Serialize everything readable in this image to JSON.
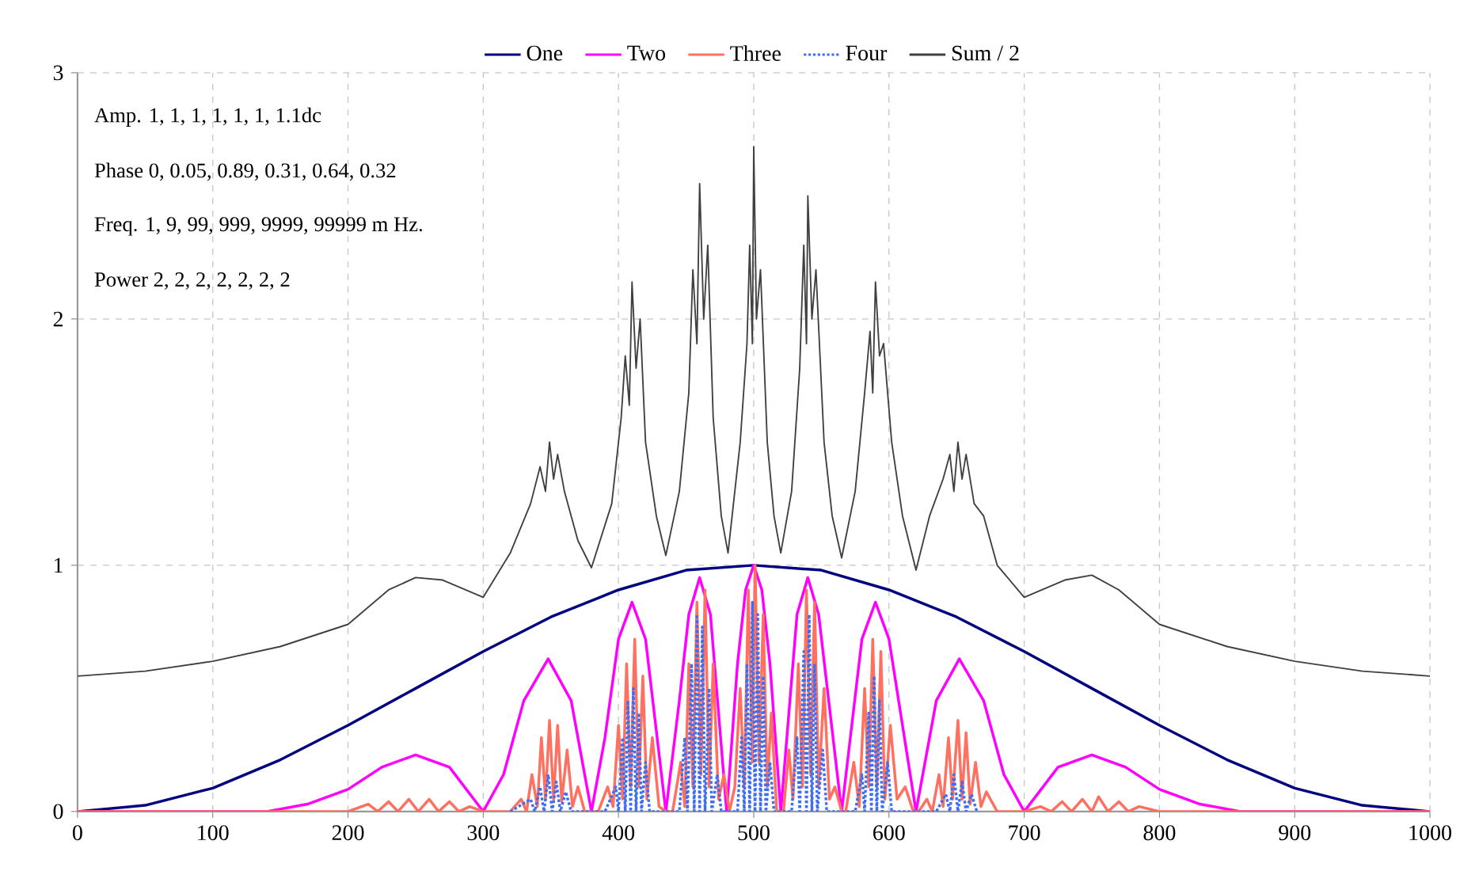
{
  "chart_data": {
    "type": "line",
    "annotations": [
      "Amp. 1, 1, 1, 1, 1, 1, 1.1dc",
      "Phase 0, 0.05, 0.89, 0.31, 0.64, 0.32",
      "Freq. 1, 9, 99, 999, 9999, 99999 m Hz.",
      "Power 2, 2, 2, 2, 2, 2, 2"
    ],
    "xlim": [
      0,
      1000
    ],
    "ylim": [
      0,
      3
    ],
    "xticks": [
      0,
      100,
      200,
      300,
      400,
      500,
      600,
      700,
      800,
      900,
      1000
    ],
    "yticks": [
      0,
      1,
      2,
      3
    ],
    "grid": true,
    "legend": "top",
    "marker": "none",
    "line_style": "solid",
    "series": [
      {
        "name": "One",
        "color": "#000080",
        "x": [
          0,
          50,
          100,
          150,
          200,
          250,
          300,
          350,
          400,
          450,
          500,
          550,
          600,
          650,
          700,
          750,
          800,
          850,
          900,
          950,
          1000
        ],
        "values": [
          0,
          0.025,
          0.095,
          0.21,
          0.35,
          0.5,
          0.65,
          0.79,
          0.9,
          0.98,
          1.0,
          0.98,
          0.9,
          0.79,
          0.65,
          0.5,
          0.35,
          0.21,
          0.095,
          0.025,
          0
        ]
      },
      {
        "name": "Two",
        "color": "#ff00ff",
        "x": [
          0,
          140,
          170,
          200,
          225,
          250,
          275,
          300,
          315,
          330,
          348,
          365,
          380,
          390,
          400,
          410,
          420,
          435,
          445,
          452,
          460,
          468,
          480,
          488,
          494,
          500,
          506,
          512,
          520,
          532,
          540,
          548,
          565,
          580,
          590,
          600,
          620,
          635,
          652,
          670,
          685,
          700,
          725,
          750,
          775,
          800,
          830,
          860,
          1000
        ],
        "values": [
          0,
          0,
          0.03,
          0.09,
          0.18,
          0.23,
          0.18,
          0,
          0.15,
          0.45,
          0.62,
          0.45,
          0,
          0.3,
          0.7,
          0.85,
          0.7,
          0,
          0.45,
          0.8,
          0.95,
          0.8,
          0,
          0.6,
          0.9,
          1.0,
          0.9,
          0.6,
          0,
          0.8,
          0.95,
          0.8,
          0,
          0.7,
          0.85,
          0.7,
          0,
          0.45,
          0.62,
          0.45,
          0.15,
          0,
          0.18,
          0.23,
          0.18,
          0.09,
          0.03,
          0,
          0
        ]
      },
      {
        "name": "Three",
        "color": "#ff7060",
        "x": [
          0,
          200,
          215,
          222,
          230,
          237,
          245,
          252,
          260,
          267,
          275,
          282,
          290,
          300,
          320,
          328,
          332,
          336,
          340,
          343,
          346,
          349,
          352,
          355,
          358,
          362,
          366,
          370,
          375,
          380,
          385,
          392,
          396,
          400,
          403,
          406,
          409,
          412,
          415,
          418,
          421,
          425,
          430,
          435,
          440,
          446,
          449,
          452,
          455,
          458,
          461,
          464,
          467,
          470,
          474,
          478,
          482,
          486,
          490,
          493,
          496,
          499,
          501,
          504,
          507,
          510,
          513,
          517,
          522,
          526,
          529,
          533,
          536,
          539,
          542,
          545,
          548,
          552,
          556,
          560,
          565,
          568,
          574,
          578,
          582,
          585,
          588,
          591,
          594,
          597,
          601,
          606,
          612,
          618,
          622,
          628,
          632,
          637,
          640,
          644,
          647,
          651,
          654,
          657,
          660,
          664,
          668,
          672,
          680,
          700,
          712,
          720,
          728,
          735,
          743,
          750,
          755,
          762,
          770,
          777,
          785,
          800,
          1000
        ],
        "values": [
          0,
          0,
          0.03,
          0,
          0.04,
          0,
          0.05,
          0,
          0.05,
          0,
          0.04,
          0,
          0.02,
          0,
          0,
          0.05,
          0,
          0.15,
          0.02,
          0.3,
          0.05,
          0.37,
          0.05,
          0.35,
          0.04,
          0.25,
          0.02,
          0.1,
          0,
          0,
          0,
          0.1,
          0.02,
          0.35,
          0.05,
          0.6,
          0.1,
          0.7,
          0.1,
          0.55,
          0.05,
          0.3,
          0.02,
          0,
          0,
          0.2,
          0.02,
          0.6,
          0.1,
          0.85,
          0.15,
          0.9,
          0.1,
          0.6,
          0.05,
          0.15,
          0,
          0.1,
          0.5,
          0.1,
          0.9,
          0.2,
          1.0,
          0.2,
          0.8,
          0.1,
          0.4,
          0,
          0,
          0.25,
          0.05,
          0.6,
          0.1,
          0.9,
          0.15,
          0.85,
          0.1,
          0.5,
          0.05,
          0.1,
          0,
          0,
          0.2,
          0.02,
          0.5,
          0.1,
          0.7,
          0.1,
          0.65,
          0.05,
          0.35,
          0.05,
          0.1,
          0,
          0,
          0.05,
          0,
          0.15,
          0.02,
          0.3,
          0.05,
          0.37,
          0.05,
          0.32,
          0.03,
          0.2,
          0.02,
          0.08,
          0,
          0,
          0.02,
          0,
          0.04,
          0,
          0.05,
          0,
          0.06,
          0,
          0.04,
          0,
          0.02,
          0,
          0
        ]
      },
      {
        "name": "Four",
        "color": "#3f6ff0",
        "line_style": "dotted",
        "x": [
          320,
          335,
          338,
          342,
          345,
          348,
          351,
          354,
          357,
          361,
          365,
          390,
          398,
          400,
          403,
          405,
          407,
          409,
          411,
          413,
          415,
          417,
          420,
          423,
          430,
          445,
          449,
          451,
          454,
          456,
          458,
          460,
          462,
          464,
          467,
          469,
          473,
          476,
          488,
          491,
          493,
          495,
          497,
          499,
          501,
          503,
          505,
          507,
          509,
          512,
          515,
          528,
          532,
          534,
          537,
          539,
          541,
          543,
          545,
          547,
          551,
          554,
          575,
          580,
          582,
          585,
          587,
          589,
          591,
          593,
          595,
          599,
          602,
          635,
          642,
          645,
          648,
          651,
          654,
          657,
          661,
          665
        ],
        "values": [
          0,
          0.05,
          0,
          0.1,
          0,
          0.15,
          0,
          0.12,
          0,
          0.08,
          0,
          0,
          0.1,
          0,
          0.3,
          0,
          0.45,
          0,
          0.5,
          0,
          0.4,
          0,
          0.2,
          0,
          0,
          0,
          0.3,
          0,
          0.6,
          0,
          0.8,
          0,
          0.75,
          0,
          0.5,
          0,
          0.15,
          0,
          0,
          0.3,
          0,
          0.6,
          0,
          0.85,
          0,
          0.8,
          0,
          0.55,
          0,
          0.2,
          0,
          0,
          0.3,
          0,
          0.65,
          0,
          0.8,
          0,
          0.6,
          0,
          0.25,
          0,
          0,
          0.15,
          0,
          0.4,
          0,
          0.55,
          0,
          0.45,
          0,
          0.2,
          0,
          0,
          0.07,
          0,
          0.15,
          0,
          0.12,
          0,
          0.07,
          0
        ]
      },
      {
        "name": "Sum / 2",
        "color": "#404040",
        "x": [
          0,
          50,
          100,
          150,
          200,
          230,
          250,
          270,
          300,
          320,
          335,
          342,
          346,
          349,
          352,
          355,
          360,
          370,
          380,
          395,
          402,
          405,
          408,
          410,
          413,
          416,
          420,
          428,
          435,
          445,
          452,
          455,
          458,
          460,
          463,
          466,
          470,
          476,
          481,
          490,
          495,
          497,
          499,
          500,
          502,
          505,
          510,
          515,
          520,
          528,
          534,
          537,
          539,
          540,
          543,
          546,
          552,
          558,
          565,
          575,
          582,
          586,
          588,
          590,
          593,
          596,
          602,
          610,
          620,
          630,
          640,
          645,
          648,
          651,
          654,
          657,
          663,
          670,
          680,
          700,
          730,
          750,
          770,
          800,
          850,
          900,
          950,
          1000
        ],
        "values": [
          0.55,
          0.57,
          0.61,
          0.67,
          0.76,
          0.9,
          0.95,
          0.94,
          0.87,
          1.05,
          1.25,
          1.4,
          1.3,
          1.5,
          1.35,
          1.45,
          1.3,
          1.1,
          0.99,
          1.25,
          1.6,
          1.85,
          1.65,
          2.15,
          1.8,
          2.0,
          1.5,
          1.2,
          1.04,
          1.3,
          1.7,
          2.2,
          1.9,
          2.55,
          2.0,
          2.3,
          1.6,
          1.2,
          1.05,
          1.5,
          1.9,
          2.3,
          1.9,
          2.7,
          2.0,
          2.2,
          1.5,
          1.2,
          1.05,
          1.3,
          1.8,
          2.3,
          1.9,
          2.5,
          2.0,
          2.2,
          1.5,
          1.2,
          1.03,
          1.3,
          1.7,
          1.95,
          1.7,
          2.15,
          1.85,
          1.9,
          1.5,
          1.2,
          0.98,
          1.2,
          1.35,
          1.45,
          1.3,
          1.5,
          1.35,
          1.45,
          1.25,
          1.2,
          1.0,
          0.87,
          0.94,
          0.96,
          0.9,
          0.76,
          0.67,
          0.61,
          0.57,
          0.55
        ]
      }
    ]
  }
}
